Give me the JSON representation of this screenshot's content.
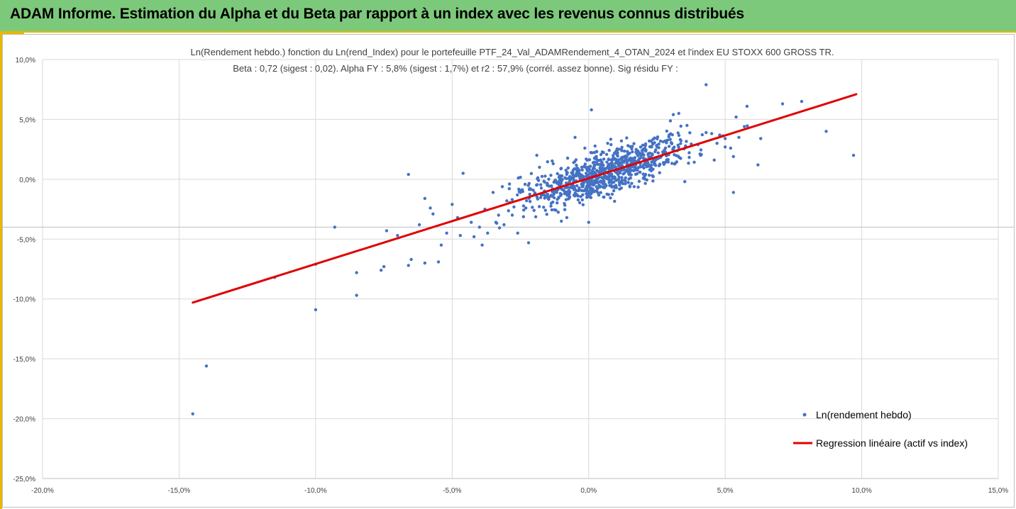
{
  "banner": {
    "title": "ADAM Informe. Estimation du Alpha et du Beta par rapport à un index avec les revenus connus distribués"
  },
  "colors": {
    "banner_bg": "#7dc97b",
    "banner_accent": "#e6b800",
    "points": "#4472c4",
    "regression": "#e00000",
    "grid": "#d9d9d9"
  },
  "chart_data": {
    "type": "scatter",
    "title": "Ln(Rendement hebdo.) fonction du Ln(rend_Index) pour le portefeuille PTF_24_Val_ADAMRendement_4_OTAN_2024 et l'index EU STOXX 600 GROSS TR.",
    "subtitle": "Beta : 0,72 (sigest : 0,02). Alpha FY : 5,8% (sigest : 1,7%) et r2 : 57,9% (corrél. assez bonne). Sig résidu FY :",
    "xlim": [
      -0.2,
      0.15
    ],
    "ylim": [
      -0.25,
      0.1
    ],
    "x_ticks": [
      -0.2,
      -0.15,
      -0.1,
      -0.05,
      0.0,
      0.05,
      0.1,
      0.15
    ],
    "y_ticks": [
      0.1,
      0.05,
      0.0,
      -0.05,
      -0.1,
      -0.15,
      -0.2,
      -0.25
    ],
    "x_tick_labels": [
      "-20,0%",
      "-15,0%",
      "-10,0%",
      "-5,0%",
      "0,0%",
      "5,0%",
      "10,0%",
      "15,0%"
    ],
    "y_tick_labels": [
      "10,0%",
      "5,0%",
      "0,0%",
      "-5,0%",
      "-10,0%",
      "-15,0%",
      "-20,0%",
      "-25,0%"
    ],
    "grid": true,
    "reference_line_y": -0.04,
    "legend_position": "bottom-right",
    "series": [
      {
        "name": "Ln(rendement hebdo)",
        "kind": "points",
        "color": "#4472c4",
        "cluster_generator": {
          "count": 900,
          "x_mean": 0.005,
          "x_sd": 0.014,
          "slope": 0.72,
          "intercept": 0.001,
          "noise_sd": 0.009,
          "seed": 24
        },
        "points": [
          [
            -0.145,
            -0.196
          ],
          [
            -0.14,
            -0.156
          ],
          [
            -0.1,
            -0.109
          ],
          [
            -0.085,
            -0.097
          ],
          [
            -0.115,
            -0.082
          ],
          [
            -0.1,
            -0.071
          ],
          [
            -0.093,
            -0.04
          ],
          [
            -0.085,
            -0.078
          ],
          [
            -0.076,
            -0.076
          ],
          [
            -0.075,
            -0.073
          ],
          [
            -0.074,
            -0.043
          ],
          [
            -0.07,
            -0.047
          ],
          [
            -0.066,
            -0.072
          ],
          [
            -0.065,
            -0.067
          ],
          [
            -0.06,
            -0.07
          ],
          [
            -0.066,
            0.004
          ],
          [
            -0.062,
            -0.038
          ],
          [
            -0.06,
            -0.016
          ],
          [
            -0.058,
            -0.024
          ],
          [
            -0.057,
            -0.029
          ],
          [
            -0.055,
            -0.069
          ],
          [
            -0.054,
            -0.055
          ],
          [
            -0.052,
            -0.045
          ],
          [
            -0.05,
            -0.021
          ],
          [
            -0.048,
            -0.032
          ],
          [
            -0.047,
            -0.047
          ],
          [
            -0.046,
            0.005
          ],
          [
            -0.043,
            -0.036
          ],
          [
            -0.042,
            -0.048
          ],
          [
            -0.04,
            -0.04
          ],
          [
            -0.039,
            -0.055
          ],
          [
            -0.038,
            -0.025
          ],
          [
            -0.037,
            -0.045
          ],
          [
            -0.035,
            -0.011
          ],
          [
            -0.034,
            -0.036
          ],
          [
            -0.033,
            -0.03
          ],
          [
            -0.031,
            -0.038
          ],
          [
            -0.03,
            -0.018
          ],
          [
            -0.029,
            -0.004
          ],
          [
            -0.028,
            -0.03
          ],
          [
            -0.026,
            -0.045
          ],
          [
            -0.025,
            -0.011
          ],
          [
            -0.023,
            -0.024
          ],
          [
            -0.022,
            -0.053
          ],
          [
            -0.02,
            -0.026
          ],
          [
            -0.019,
            0.02
          ],
          [
            -0.018,
            0.01
          ],
          [
            -0.015,
            -0.015
          ],
          [
            -0.013,
            0.013
          ],
          [
            -0.01,
            -0.035
          ],
          [
            -0.008,
            -0.032
          ],
          [
            -0.005,
            0.035
          ],
          [
            0.001,
            0.058
          ],
          [
            0.0,
            -0.036
          ],
          [
            0.012,
            0.032
          ],
          [
            0.03,
            0.038
          ],
          [
            0.031,
            0.054
          ],
          [
            0.033,
            0.055
          ],
          [
            0.036,
            0.045
          ],
          [
            0.04,
            0.029
          ],
          [
            0.041,
            0.02
          ],
          [
            0.043,
            0.079
          ],
          [
            0.043,
            0.039
          ],
          [
            0.046,
            0.016
          ],
          [
            0.047,
            0.03
          ],
          [
            0.048,
            0.037
          ],
          [
            0.05,
            0.034
          ],
          [
            0.05,
            0.027
          ],
          [
            0.052,
            0.026
          ],
          [
            0.053,
            0.019
          ],
          [
            0.053,
            -0.011
          ],
          [
            0.054,
            0.052
          ],
          [
            0.055,
            0.035
          ],
          [
            0.057,
            0.044
          ],
          [
            0.058,
            0.061
          ],
          [
            0.062,
            0.012
          ],
          [
            0.063,
            0.034
          ],
          [
            0.071,
            0.063
          ],
          [
            0.078,
            0.065
          ],
          [
            0.087,
            0.04
          ],
          [
            0.097,
            0.02
          ]
        ]
      },
      {
        "name": "Regression linéaire (actif vs index)",
        "kind": "line",
        "color": "#e00000",
        "points": [
          [
            -0.145,
            -0.103
          ],
          [
            0.098,
            0.071
          ]
        ]
      }
    ]
  }
}
